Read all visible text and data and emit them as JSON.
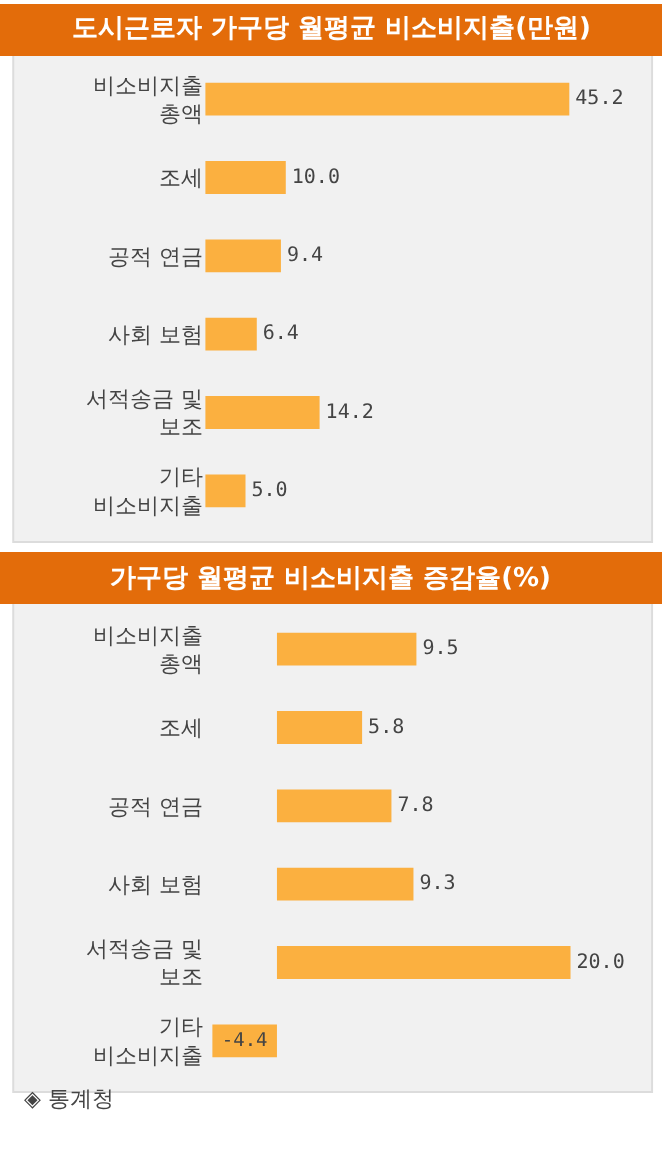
{
  "chart_data": [
    {
      "type": "bar",
      "orientation": "horizontal",
      "title": "도시근로자 가구당 월평균 비소비지출(만원)",
      "categories": [
        "비소비지출\n총액",
        "조세",
        "공적 연금",
        "사회 보험",
        "서적송금 및\n보조",
        "기타\n비소비지출"
      ],
      "values": [
        45.2,
        10.0,
        9.4,
        6.4,
        14.2,
        5.0
      ],
      "color": "#fbb040",
      "value_labels": [
        "45.2",
        "10.0",
        "9.4",
        "6.4",
        "14.2",
        "5.0"
      ]
    },
    {
      "type": "bar",
      "orientation": "horizontal",
      "title": "가구당 월평균 비소비지출 증감율(%)",
      "categories": [
        "비소비지출\n총액",
        "조세",
        "공적 연금",
        "사회 보험",
        "서적송금 및\n보조",
        "기타\n비소비지출"
      ],
      "values": [
        9.5,
        5.8,
        7.8,
        9.3,
        20.0,
        -4.4
      ],
      "color": "#fbb040",
      "value_labels": [
        "9.5",
        "5.8",
        "7.8",
        "9.3",
        "20.0",
        "-4.4"
      ],
      "annotations": [
        "◈ 통계청"
      ]
    }
  ]
}
